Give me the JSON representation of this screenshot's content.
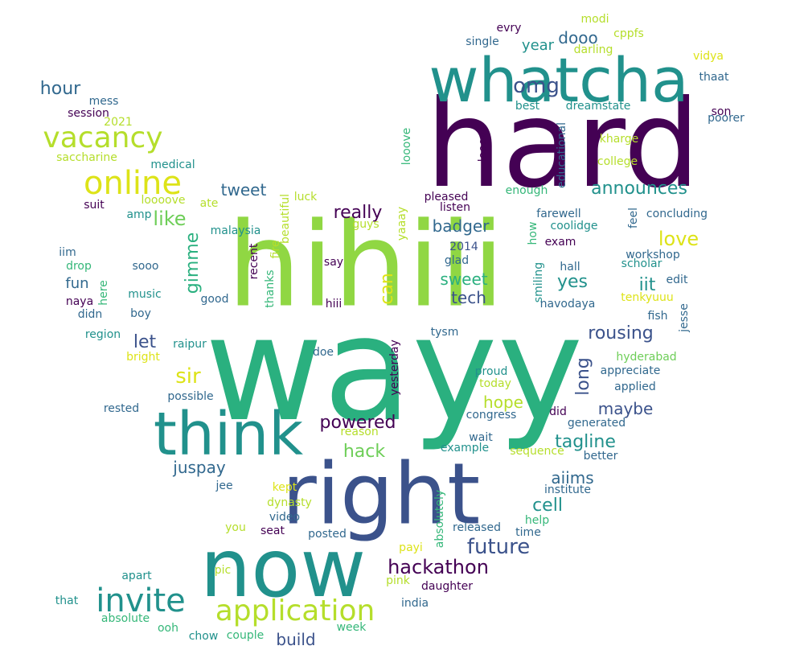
{
  "palette": {
    "dark_purple": "#440154",
    "indigo": "#3b528b",
    "navy": "#31688e",
    "teal": "#21918c",
    "green_teal": "#2ab07f",
    "green": "#35b779",
    "light_green": "#6ece58",
    "lime": "#90d743",
    "yellow_green": "#b5de2b",
    "yellow": "#dde318"
  },
  "words": [
    {
      "text": "wayy",
      "color": "green_teal"
    },
    {
      "text": "hihiii",
      "color": "lime"
    },
    {
      "text": "hard",
      "color": "dark_purple"
    },
    {
      "text": "right",
      "color": "indigo"
    },
    {
      "text": "now",
      "color": "teal"
    },
    {
      "text": "think",
      "color": "teal"
    },
    {
      "text": "whatcha",
      "color": "teal"
    },
    {
      "text": "invite",
      "color": "teal"
    },
    {
      "text": "application",
      "color": "yellow_green"
    },
    {
      "text": "online",
      "color": "yellow"
    },
    {
      "text": "vacancy",
      "color": "yellow_green"
    },
    {
      "text": "future",
      "color": "indigo"
    },
    {
      "text": "hackathon",
      "color": "dark_purple"
    },
    {
      "text": "omg",
      "color": "indigo"
    },
    {
      "text": "announces",
      "color": "teal"
    },
    {
      "text": "rousing",
      "color": "indigo"
    },
    {
      "text": "tagline",
      "color": "teal"
    },
    {
      "text": "powered",
      "color": "dark_purple"
    },
    {
      "text": "really",
      "color": "dark_purple"
    },
    {
      "text": "love",
      "color": "yellow"
    },
    {
      "text": "like",
      "color": "light_green"
    },
    {
      "text": "gimme",
      "color": "green_teal"
    },
    {
      "text": "sir",
      "color": "yellow"
    },
    {
      "text": "hour",
      "color": "navy"
    },
    {
      "text": "cell",
      "color": "teal"
    },
    {
      "text": "yes",
      "color": "teal"
    },
    {
      "text": "iit",
      "color": "teal"
    },
    {
      "text": "hack",
      "color": "light_green"
    },
    {
      "text": "long",
      "color": "indigo"
    },
    {
      "text": "let",
      "color": "indigo"
    },
    {
      "text": "can",
      "color": "yellow"
    },
    {
      "text": "tech",
      "color": "indigo"
    },
    {
      "text": "badger",
      "color": "navy"
    },
    {
      "text": "sweet",
      "color": "green_teal"
    },
    {
      "text": "maybe",
      "color": "indigo"
    },
    {
      "text": "aiims",
      "color": "navy"
    },
    {
      "text": "juspay",
      "color": "navy"
    },
    {
      "text": "build",
      "color": "indigo"
    },
    {
      "text": "hope",
      "color": "yellow_green"
    },
    {
      "text": "tweet",
      "color": "navy"
    },
    {
      "text": "dooo",
      "color": "navy"
    },
    {
      "text": "year",
      "color": "teal"
    },
    {
      "text": "fun",
      "color": "navy"
    },
    {
      "text": "modi",
      "color": "yellow_green"
    },
    {
      "text": "evry",
      "color": "dark_purple"
    },
    {
      "text": "cppfs",
      "color": "yellow_green"
    },
    {
      "text": "single",
      "color": "navy"
    },
    {
      "text": "darling",
      "color": "yellow_green"
    },
    {
      "text": "vidya",
      "color": "yellow"
    },
    {
      "text": "thaat",
      "color": "navy"
    },
    {
      "text": "best",
      "color": "teal"
    },
    {
      "text": "dreamstate",
      "color": "teal"
    },
    {
      "text": "son",
      "color": "dark_purple"
    },
    {
      "text": "poorer",
      "color": "navy"
    },
    {
      "text": "mess",
      "color": "navy"
    },
    {
      "text": "session",
      "color": "dark_purple"
    },
    {
      "text": "2021",
      "color": "yellow_green"
    },
    {
      "text": "saccharine",
      "color": "yellow_green"
    },
    {
      "text": "medical",
      "color": "teal"
    },
    {
      "text": "looove",
      "color": "green"
    },
    {
      "text": "looove",
      "color": "dark_purple"
    },
    {
      "text": "educational",
      "color": "navy"
    },
    {
      "text": "kharge",
      "color": "yellow_green"
    },
    {
      "text": "college",
      "color": "yellow_green"
    },
    {
      "text": "enough",
      "color": "green"
    },
    {
      "text": "loooove",
      "color": "yellow_green"
    },
    {
      "text": "ate",
      "color": "yellow_green"
    },
    {
      "text": "luck",
      "color": "yellow_green"
    },
    {
      "text": "pleased",
      "color": "dark_purple"
    },
    {
      "text": "listen",
      "color": "dark_purple"
    },
    {
      "text": "suit",
      "color": "dark_purple"
    },
    {
      "text": "amp",
      "color": "teal"
    },
    {
      "text": "farewell",
      "color": "navy"
    },
    {
      "text": "feel",
      "color": "navy"
    },
    {
      "text": "concluding",
      "color": "navy"
    },
    {
      "text": "guys",
      "color": "yellow_green"
    },
    {
      "text": "yaaay",
      "color": "yellow_green"
    },
    {
      "text": "coolidge",
      "color": "teal"
    },
    {
      "text": "malaysia",
      "color": "teal"
    },
    {
      "text": "beautiful",
      "color": "yellow_green"
    },
    {
      "text": "fire",
      "color": "yellow_green"
    },
    {
      "text": "how",
      "color": "green"
    },
    {
      "text": "exam",
      "color": "dark_purple"
    },
    {
      "text": "2014",
      "color": "indigo"
    },
    {
      "text": "glad",
      "color": "navy"
    },
    {
      "text": "iim",
      "color": "navy"
    },
    {
      "text": "workshop",
      "color": "navy"
    },
    {
      "text": "drop",
      "color": "green"
    },
    {
      "text": "sooo",
      "color": "navy"
    },
    {
      "text": "recent",
      "color": "dark_purple"
    },
    {
      "text": "say",
      "color": "dark_purple"
    },
    {
      "text": "hall",
      "color": "navy"
    },
    {
      "text": "scholar",
      "color": "teal"
    },
    {
      "text": "edit",
      "color": "navy"
    },
    {
      "text": "here",
      "color": "green"
    },
    {
      "text": "smiling",
      "color": "teal"
    },
    {
      "text": "music",
      "color": "teal"
    },
    {
      "text": "thanks",
      "color": "green"
    },
    {
      "text": "good",
      "color": "navy"
    },
    {
      "text": "navodaya",
      "color": "navy"
    },
    {
      "text": "naya",
      "color": "dark_purple"
    },
    {
      "text": "boy",
      "color": "navy"
    },
    {
      "text": "hiii",
      "color": "dark_purple"
    },
    {
      "text": "tenkyuuu",
      "color": "yellow"
    },
    {
      "text": "didn",
      "color": "navy"
    },
    {
      "text": "fish",
      "color": "navy"
    },
    {
      "text": "jesse",
      "color": "navy"
    },
    {
      "text": "region",
      "color": "teal"
    },
    {
      "text": "tysm",
      "color": "navy"
    },
    {
      "text": "raipur",
      "color": "teal"
    },
    {
      "text": "bright",
      "color": "yellow"
    },
    {
      "text": "doe",
      "color": "navy"
    },
    {
      "text": "yesterday",
      "color": "dark_purple"
    },
    {
      "text": "hyderabad",
      "color": "light_green"
    },
    {
      "text": "appreciate",
      "color": "navy"
    },
    {
      "text": "proud",
      "color": "teal"
    },
    {
      "text": "today",
      "color": "yellow_green"
    },
    {
      "text": "applied",
      "color": "navy"
    },
    {
      "text": "possible",
      "color": "navy"
    },
    {
      "text": "rested",
      "color": "navy"
    },
    {
      "text": "congress",
      "color": "navy"
    },
    {
      "text": "did",
      "color": "dark_purple"
    },
    {
      "text": "generated",
      "color": "navy"
    },
    {
      "text": "reason",
      "color": "yellow_green"
    },
    {
      "text": "wait",
      "color": "navy"
    },
    {
      "text": "example",
      "color": "teal"
    },
    {
      "text": "sequence",
      "color": "yellow_green"
    },
    {
      "text": "better",
      "color": "navy"
    },
    {
      "text": "jee",
      "color": "navy"
    },
    {
      "text": "kept",
      "color": "yellow"
    },
    {
      "text": "dynasty",
      "color": "yellow_green"
    },
    {
      "text": "absolutely",
      "color": "green"
    },
    {
      "text": "institute",
      "color": "navy"
    },
    {
      "text": "video",
      "color": "navy"
    },
    {
      "text": "help",
      "color": "green"
    },
    {
      "text": "you",
      "color": "yellow_green"
    },
    {
      "text": "seat",
      "color": "dark_purple"
    },
    {
      "text": "posted",
      "color": "navy"
    },
    {
      "text": "released",
      "color": "navy"
    },
    {
      "text": "time",
      "color": "navy"
    },
    {
      "text": "payi",
      "color": "yellow"
    },
    {
      "text": "pic",
      "color": "yellow_green"
    },
    {
      "text": "apart",
      "color": "teal"
    },
    {
      "text": "pink",
      "color": "yellow_green"
    },
    {
      "text": "daughter",
      "color": "dark_purple"
    },
    {
      "text": "that",
      "color": "teal"
    },
    {
      "text": "india",
      "color": "navy"
    },
    {
      "text": "absolute",
      "color": "green"
    },
    {
      "text": "ooh",
      "color": "green"
    },
    {
      "text": "week",
      "color": "green"
    },
    {
      "text": "chow",
      "color": "teal"
    },
    {
      "text": "couple",
      "color": "green"
    }
  ]
}
